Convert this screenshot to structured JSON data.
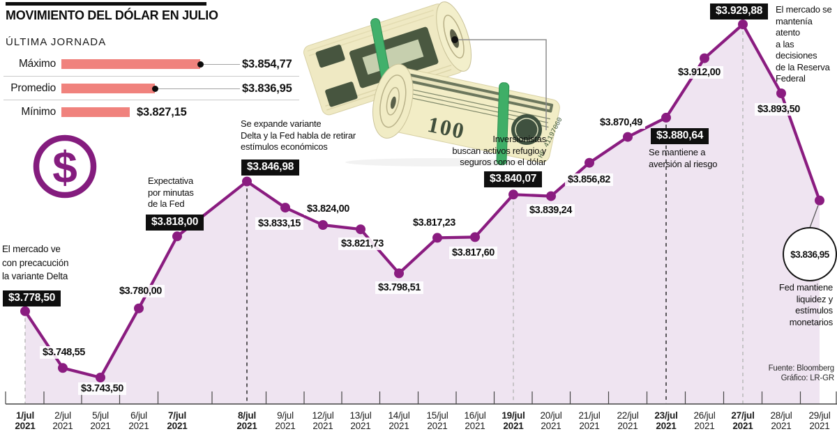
{
  "header": {
    "title": "MOVIMIENTO DEL DÓLAR EN JULIO",
    "subtitle": "ÚLTIMA JORNADA"
  },
  "summary": {
    "rows": [
      {
        "label": "Máximo",
        "value": "$3.854,77"
      },
      {
        "label": "Promedio",
        "value": "$3.836,95"
      },
      {
        "label": "Mínimo",
        "value": "$3.827,15"
      }
    ]
  },
  "dollar_icon": "$",
  "photo": {
    "bill_number": "100",
    "serial": "HF 41197060"
  },
  "chart_data": {
    "type": "area",
    "title": "MOVIMIENTO DEL DÓLAR EN JULIO",
    "x_dates": [
      "1/jul",
      "2/jul",
      "5/jul",
      "6/jul",
      "7/jul",
      "8/jul",
      "9/jul",
      "12/jul",
      "13/jul",
      "14/jul",
      "15/jul",
      "16/jul",
      "19/jul",
      "20/jul",
      "21/jul",
      "22/jul",
      "23/jul",
      "26/jul",
      "27/jul",
      "28/jul",
      "29/jul"
    ],
    "year": "2021",
    "bold_dates": [
      "1/jul",
      "7/jul",
      "8/jul",
      "19/jul",
      "23/jul",
      "27/jul"
    ],
    "values": [
      3778.5,
      3748.55,
      3743.5,
      3780.0,
      3818.0,
      3846.98,
      3833.15,
      3824.0,
      3821.73,
      3798.51,
      3817.23,
      3817.6,
      3840.07,
      3839.24,
      3856.82,
      3870.49,
      3880.64,
      3912.0,
      3929.88,
      3893.5,
      3836.95
    ],
    "value_labels": [
      "$3.778,50",
      "$3.748,55",
      "$3.743,50",
      "$3.780,00",
      "$3.818,00",
      "$3.846,98",
      "$3.833,15",
      "$3.824,00",
      "$3.821,73",
      "$3.798,51",
      "$3.817,23",
      "$3.817,60",
      "$3.840,07",
      "$3.839,24",
      "$3.856,82",
      "$3.870,49",
      "$3.880,64",
      "$3.912,00",
      "$3.929,88",
      "$3.893,50",
      "$3.836,95"
    ],
    "label_styles": [
      "box",
      "chip",
      "chip",
      "chip",
      "box",
      "box",
      "chip",
      "chip",
      "chip",
      "chip",
      "chip",
      "chip",
      "box",
      "chip",
      "chip",
      "chip",
      "box",
      "chip",
      "box",
      "chip",
      "circle"
    ],
    "ylim": [
      3743.5,
      3929.88
    ],
    "line_color": "#8a1c80",
    "fill_color": "#efe4f1",
    "dashed_guides": [
      {
        "date": "1/jul",
        "color": "gray"
      },
      {
        "date": "8/jul",
        "color": "black"
      },
      {
        "date": "19/jul",
        "color": "gray"
      },
      {
        "date": "23/jul",
        "color": "black"
      },
      {
        "date": "27/jul",
        "color": "gray"
      }
    ]
  },
  "annotations": [
    {
      "id": "delta-caution",
      "text": "El mercado ve\ncon precacución\nla variante Delta"
    },
    {
      "id": "fed-minutes",
      "text": "Expectativa\npor minutas\nde la Fed"
    },
    {
      "id": "delta-expands",
      "text": "Se expande variante\nDelta y la Fed habla de retirar\nestímulos económicos"
    },
    {
      "id": "safe-haven",
      "text": "Inversionistas\nbuscan activos refugio y\nseguros como el dólar"
    },
    {
      "id": "risk-aversion",
      "text": "Se mantiene a\naversión al riesgo"
    },
    {
      "id": "fed-decisions",
      "text": "El mercado se\nmantenía atento\na las decisiones\nde la Reserva\nFederal"
    },
    {
      "id": "fed-liquidity",
      "text": "Fed mantiene\nliquidez y\nestímulos\nmonetarios"
    }
  ],
  "source": {
    "line1": "Fuente: Bloomberg",
    "line2": "Gráfico: LR-GR"
  },
  "colors": {
    "line": "#8a1c80",
    "area_fill": "#efe4f1",
    "summary_bar": "#f0827d",
    "label_box_bg": "#0f0f0f",
    "dash_gray": "#b5b5b5",
    "dash_black": "#1a1a1a",
    "axis": "#444444"
  }
}
